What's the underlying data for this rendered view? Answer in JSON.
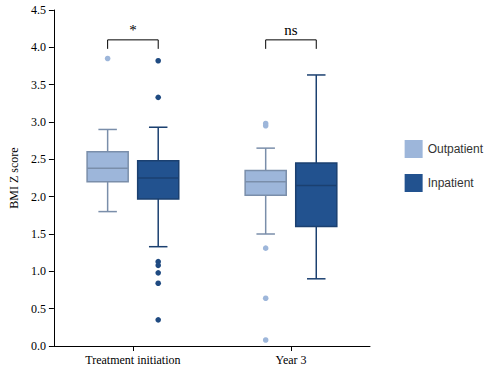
{
  "chart_data": {
    "type": "boxplot",
    "y_label": "BMI Z score",
    "categories": [
      "Treatment initiation",
      "Year 3"
    ],
    "series": [
      {
        "name": "Outpatient",
        "color": "#9db6da",
        "values": [
          {
            "min": 1.8,
            "q1": 2.2,
            "median": 2.38,
            "q3": 2.6,
            "max": 2.9
          },
          {
            "min": 1.5,
            "q1": 2.02,
            "median": 2.2,
            "q3": 2.35,
            "max": 2.65
          }
        ],
        "outliers": [
          [
            3.85
          ],
          [
            2.98,
            2.95,
            1.31,
            0.64,
            0.08
          ]
        ]
      },
      {
        "name": "Inpatient",
        "color": "#22528f",
        "values": [
          {
            "min": 1.33,
            "q1": 1.97,
            "median": 2.25,
            "q3": 2.48,
            "max": 2.93
          },
          {
            "min": 0.9,
            "q1": 1.6,
            "median": 2.15,
            "q3": 2.45,
            "max": 3.63
          }
        ],
        "outliers": [
          [
            3.82,
            3.33,
            1.13,
            1.08,
            0.98,
            0.84,
            0.35
          ],
          []
        ]
      }
    ],
    "annotations": [
      {
        "text": "*",
        "category": "Treatment initiation",
        "y": 4.1
      },
      {
        "text": "ns",
        "category": "Year 3",
        "y": 4.1
      }
    ],
    "ylim": [
      0,
      4.5
    ],
    "yticks": [
      {
        "value": 0,
        "label": "0.0"
      },
      0.5,
      {
        "value": 1,
        "label": "1.0"
      },
      1.5,
      {
        "value": 2,
        "label": "2.0"
      },
      2.5,
      {
        "value": 3,
        "label": "3.0"
      },
      3.5,
      {
        "value": 4,
        "label": "4.0"
      },
      4.5
    ],
    "grid": false,
    "legend": "right"
  }
}
